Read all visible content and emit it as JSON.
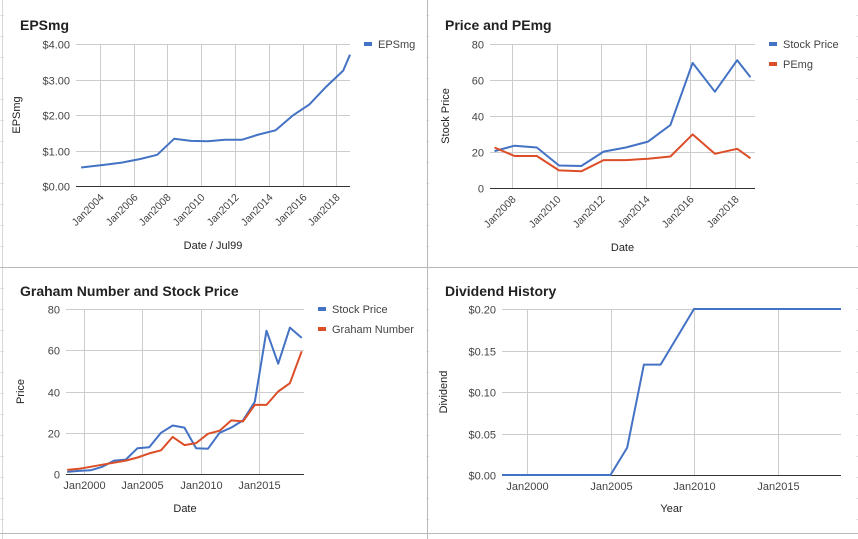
{
  "colors": {
    "blue": "#4472c4",
    "red": "#dc4e28",
    "grid": "#cccccc",
    "axis": "#333333",
    "text": "#444444"
  },
  "chart_data": [
    {
      "id": "eps",
      "type": "line",
      "title": "EPSmg",
      "xlabel": "Date / Jul99",
      "ylabel": "EPSmg",
      "xlim": [
        2002.6,
        2018.8
      ],
      "ylim": [
        0,
        4
      ],
      "yticks": [
        "$0.00",
        "$1.00",
        "$2.00",
        "$3.00",
        "$4.00"
      ],
      "ytick_values": [
        0,
        1,
        2,
        3,
        4
      ],
      "xtick_values": [
        2004,
        2006,
        2008,
        2010,
        2012,
        2014,
        2016,
        2018
      ],
      "xticks": [
        "Jan2004",
        "Jan2006",
        "Jan2008",
        "Jan2010",
        "Jan2012",
        "Jan2014",
        "Jan2016",
        "Jan2018"
      ],
      "x_labels_rotated": true,
      "grid": true,
      "legend": "right",
      "series": [
        {
          "name": "EPSmg",
          "color": "#4472c4",
          "x": [
            2002.9,
            2004.3,
            2005.3,
            2006.4,
            2007.4,
            2008.4,
            2009.4,
            2010.4,
            2011.4,
            2012.4,
            2013.4,
            2014.4,
            2015.4,
            2016.4,
            2017.4,
            2018.4,
            2018.8
          ],
          "y": [
            0.52,
            0.6,
            0.66,
            0.76,
            0.88,
            1.33,
            1.27,
            1.26,
            1.3,
            1.3,
            1.45,
            1.57,
            1.98,
            2.3,
            2.8,
            3.25,
            3.7
          ]
        }
      ]
    },
    {
      "id": "pe",
      "type": "line",
      "title": "Price and PEmg",
      "xlabel": "Date",
      "ylabel": "Stock Price",
      "xlim": [
        2007,
        2018.9
      ],
      "ylim": [
        0,
        80
      ],
      "yticks": [
        "0",
        "20",
        "40",
        "60",
        "80"
      ],
      "ytick_values": [
        0,
        20,
        40,
        60,
        80
      ],
      "xtick_values": [
        2008,
        2010,
        2012,
        2014,
        2016,
        2018
      ],
      "xticks": [
        "Jan2008",
        "Jan2010",
        "Jan2012",
        "Jan2014",
        "Jan2016",
        "Jan2018"
      ],
      "x_labels_rotated": true,
      "grid": true,
      "legend": "right",
      "series": [
        {
          "name": "Stock Price",
          "color": "#4472c4",
          "x": [
            2007.2,
            2008.1,
            2009.1,
            2010.1,
            2011.1,
            2012.1,
            2013.1,
            2014.1,
            2015.1,
            2016.1,
            2017.1,
            2018.1,
            2018.7
          ],
          "y": [
            20.5,
            23.5,
            22.5,
            12.5,
            12.2,
            20.2,
            22.5,
            25.8,
            35.0,
            69.5,
            53.5,
            71.0,
            61.5
          ]
        },
        {
          "name": "PEmg",
          "color": "#dc4e28",
          "x": [
            2007.2,
            2008.1,
            2009.1,
            2010.1,
            2011.1,
            2012.1,
            2013.1,
            2014.1,
            2015.1,
            2016.1,
            2017.1,
            2018.1,
            2018.7
          ],
          "y": [
            22.5,
            17.8,
            17.8,
            9.8,
            9.3,
            15.5,
            15.5,
            16.3,
            17.5,
            29.8,
            19.0,
            21.8,
            16.5
          ]
        }
      ]
    },
    {
      "id": "graham",
      "type": "line",
      "title": "Graham Number and Stock Price",
      "xlabel": "Date",
      "ylabel": "Price",
      "xlim": [
        1998.5,
        2018.8
      ],
      "ylim": [
        0,
        80
      ],
      "yticks": [
        "0",
        "20",
        "40",
        "60",
        "80"
      ],
      "ytick_values": [
        0,
        20,
        40,
        60,
        80
      ],
      "xtick_values": [
        2000,
        2005,
        2010,
        2015
      ],
      "xticks": [
        "Jan2000",
        "Jan2005",
        "Jan2010",
        "Jan2015"
      ],
      "x_labels_rotated": false,
      "grid": true,
      "legend": "right",
      "series": [
        {
          "name": "Stock Price",
          "color": "#4472c4",
          "x": [
            1998.6,
            1999.6,
            2000.6,
            2001.6,
            2002.6,
            2003.6,
            2004.6,
            2005.6,
            2006.6,
            2007.6,
            2008.6,
            2009.6,
            2010.6,
            2011.6,
            2012.6,
            2013.6,
            2014.6,
            2015.6,
            2016.6,
            2017.6,
            2018.6
          ],
          "y": [
            1.0,
            1.5,
            1.8,
            3.5,
            6.5,
            7.0,
            12.5,
            13.0,
            20.0,
            23.5,
            22.5,
            12.5,
            12.2,
            20.0,
            22.5,
            26.0,
            35.0,
            69.5,
            53.5,
            71.0,
            66.0
          ]
        },
        {
          "name": "Graham Number",
          "color": "#dc4e28",
          "x": [
            1998.6,
            1999.6,
            2000.6,
            2001.6,
            2002.6,
            2003.6,
            2004.6,
            2005.6,
            2006.6,
            2007.6,
            2008.6,
            2009.6,
            2010.6,
            2011.6,
            2012.6,
            2013.6,
            2014.6,
            2015.6,
            2016.6,
            2017.6,
            2018.6
          ],
          "y": [
            2.0,
            2.5,
            3.5,
            4.5,
            5.5,
            6.5,
            8.0,
            10.0,
            11.5,
            18.0,
            14.0,
            15.0,
            19.5,
            21.0,
            26.0,
            25.5,
            33.5,
            33.5,
            40.0,
            44.0,
            59.5
          ]
        }
      ]
    },
    {
      "id": "dividend",
      "type": "line",
      "title": "Dividend History",
      "xlabel": "Year",
      "ylabel": "Dividend",
      "xlim": [
        1998.5,
        2018.8
      ],
      "ylim": [
        0,
        0.2
      ],
      "yticks": [
        "$0.00",
        "$0.05",
        "$0.10",
        "$0.15",
        "$0.20"
      ],
      "ytick_values": [
        0,
        0.05,
        0.1,
        0.15,
        0.2
      ],
      "xtick_values": [
        2000,
        2005,
        2010,
        2015
      ],
      "xticks": [
        "Jan2000",
        "Jan2005",
        "Jan2010",
        "Jan2015"
      ],
      "x_labels_rotated": false,
      "grid": true,
      "legend": "none",
      "series": [
        {
          "name": "",
          "color": "#4472c4",
          "x": [
            1998.5,
            2005.0,
            2006.0,
            2007.0,
            2008.0,
            2010.0,
            2011.0,
            2018.8
          ],
          "y": [
            0,
            0,
            0.033,
            0.133,
            0.133,
            0.2,
            0.2,
            0.2
          ]
        }
      ]
    }
  ]
}
